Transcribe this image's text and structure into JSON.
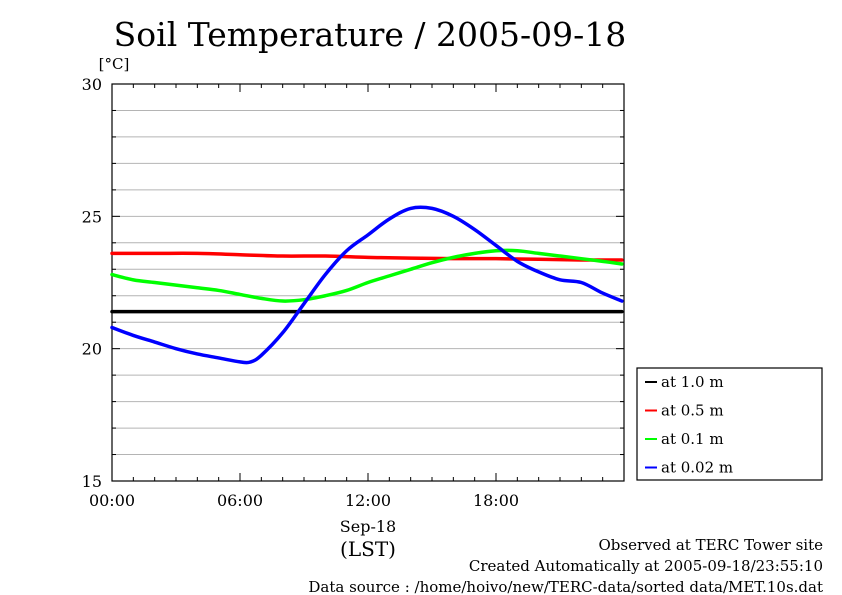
{
  "chart_data": {
    "type": "line",
    "title": "Soil Temperature / 2005-09-18",
    "ylabel": "[°C]",
    "xlabel": "(LST)",
    "date_label": "Sep-18",
    "ylim": [
      15,
      30
    ],
    "xlim": [
      0,
      24
    ],
    "yticks": [
      "15",
      "20",
      "25",
      "30"
    ],
    "yticks_values": [
      15,
      20,
      25,
      30
    ],
    "xticks": [
      "00:00",
      "06:00",
      "12:00",
      "18:00"
    ],
    "xticks_values": [
      0,
      6,
      12,
      18
    ],
    "grid": true,
    "legend_position": "lower-right outside",
    "x_unit": "hours",
    "series": [
      {
        "name": "at 1.0 m",
        "color": "#000000",
        "x": [
          0,
          2,
          4,
          6,
          8,
          10,
          12,
          14,
          16,
          18,
          20,
          22,
          23.9
        ],
        "values": [
          21.4,
          21.4,
          21.4,
          21.4,
          21.4,
          21.4,
          21.4,
          21.4,
          21.4,
          21.4,
          21.4,
          21.4,
          21.4
        ]
      },
      {
        "name": "at 0.5 m",
        "color": "#ff0000",
        "x": [
          0,
          2,
          4,
          6,
          8,
          10,
          12,
          14,
          16,
          18,
          20,
          22,
          23.9
        ],
        "values": [
          23.6,
          23.6,
          23.6,
          23.55,
          23.5,
          23.5,
          23.45,
          23.42,
          23.4,
          23.4,
          23.38,
          23.35,
          23.35
        ]
      },
      {
        "name": "at 0.1 m",
        "color": "#00ff00",
        "x": [
          0,
          1,
          2,
          3,
          4,
          5,
          6,
          7,
          8,
          9,
          10,
          11,
          12,
          13,
          14,
          15,
          16,
          17,
          18,
          19,
          20,
          21,
          22,
          23,
          23.9
        ],
        "values": [
          22.8,
          22.6,
          22.5,
          22.4,
          22.3,
          22.2,
          22.05,
          21.9,
          21.8,
          21.85,
          22.0,
          22.2,
          22.5,
          22.75,
          23.0,
          23.25,
          23.45,
          23.6,
          23.7,
          23.7,
          23.6,
          23.5,
          23.4,
          23.3,
          23.2
        ]
      },
      {
        "name": "at 0.02 m",
        "color": "#0000ff",
        "x": [
          0,
          1,
          2,
          3,
          4,
          5,
          6,
          6.5,
          7,
          8,
          9,
          10,
          11,
          12,
          13,
          14,
          15,
          16,
          17,
          18,
          19,
          20,
          21,
          22,
          23,
          23.9
        ],
        "values": [
          20.8,
          20.5,
          20.25,
          20.0,
          19.8,
          19.65,
          19.5,
          19.5,
          19.75,
          20.6,
          21.7,
          22.8,
          23.7,
          24.3,
          24.9,
          25.3,
          25.3,
          25.0,
          24.5,
          23.9,
          23.3,
          22.9,
          22.6,
          22.5,
          22.1,
          21.8
        ]
      }
    ]
  },
  "footer": {
    "site": "Observed at TERC Tower site",
    "created": "Created Automatically at 2005-09-18/23:55:10",
    "source": "Data source : /home/hoivo/new/TERC-data/sorted  data/MET.10s.dat"
  }
}
